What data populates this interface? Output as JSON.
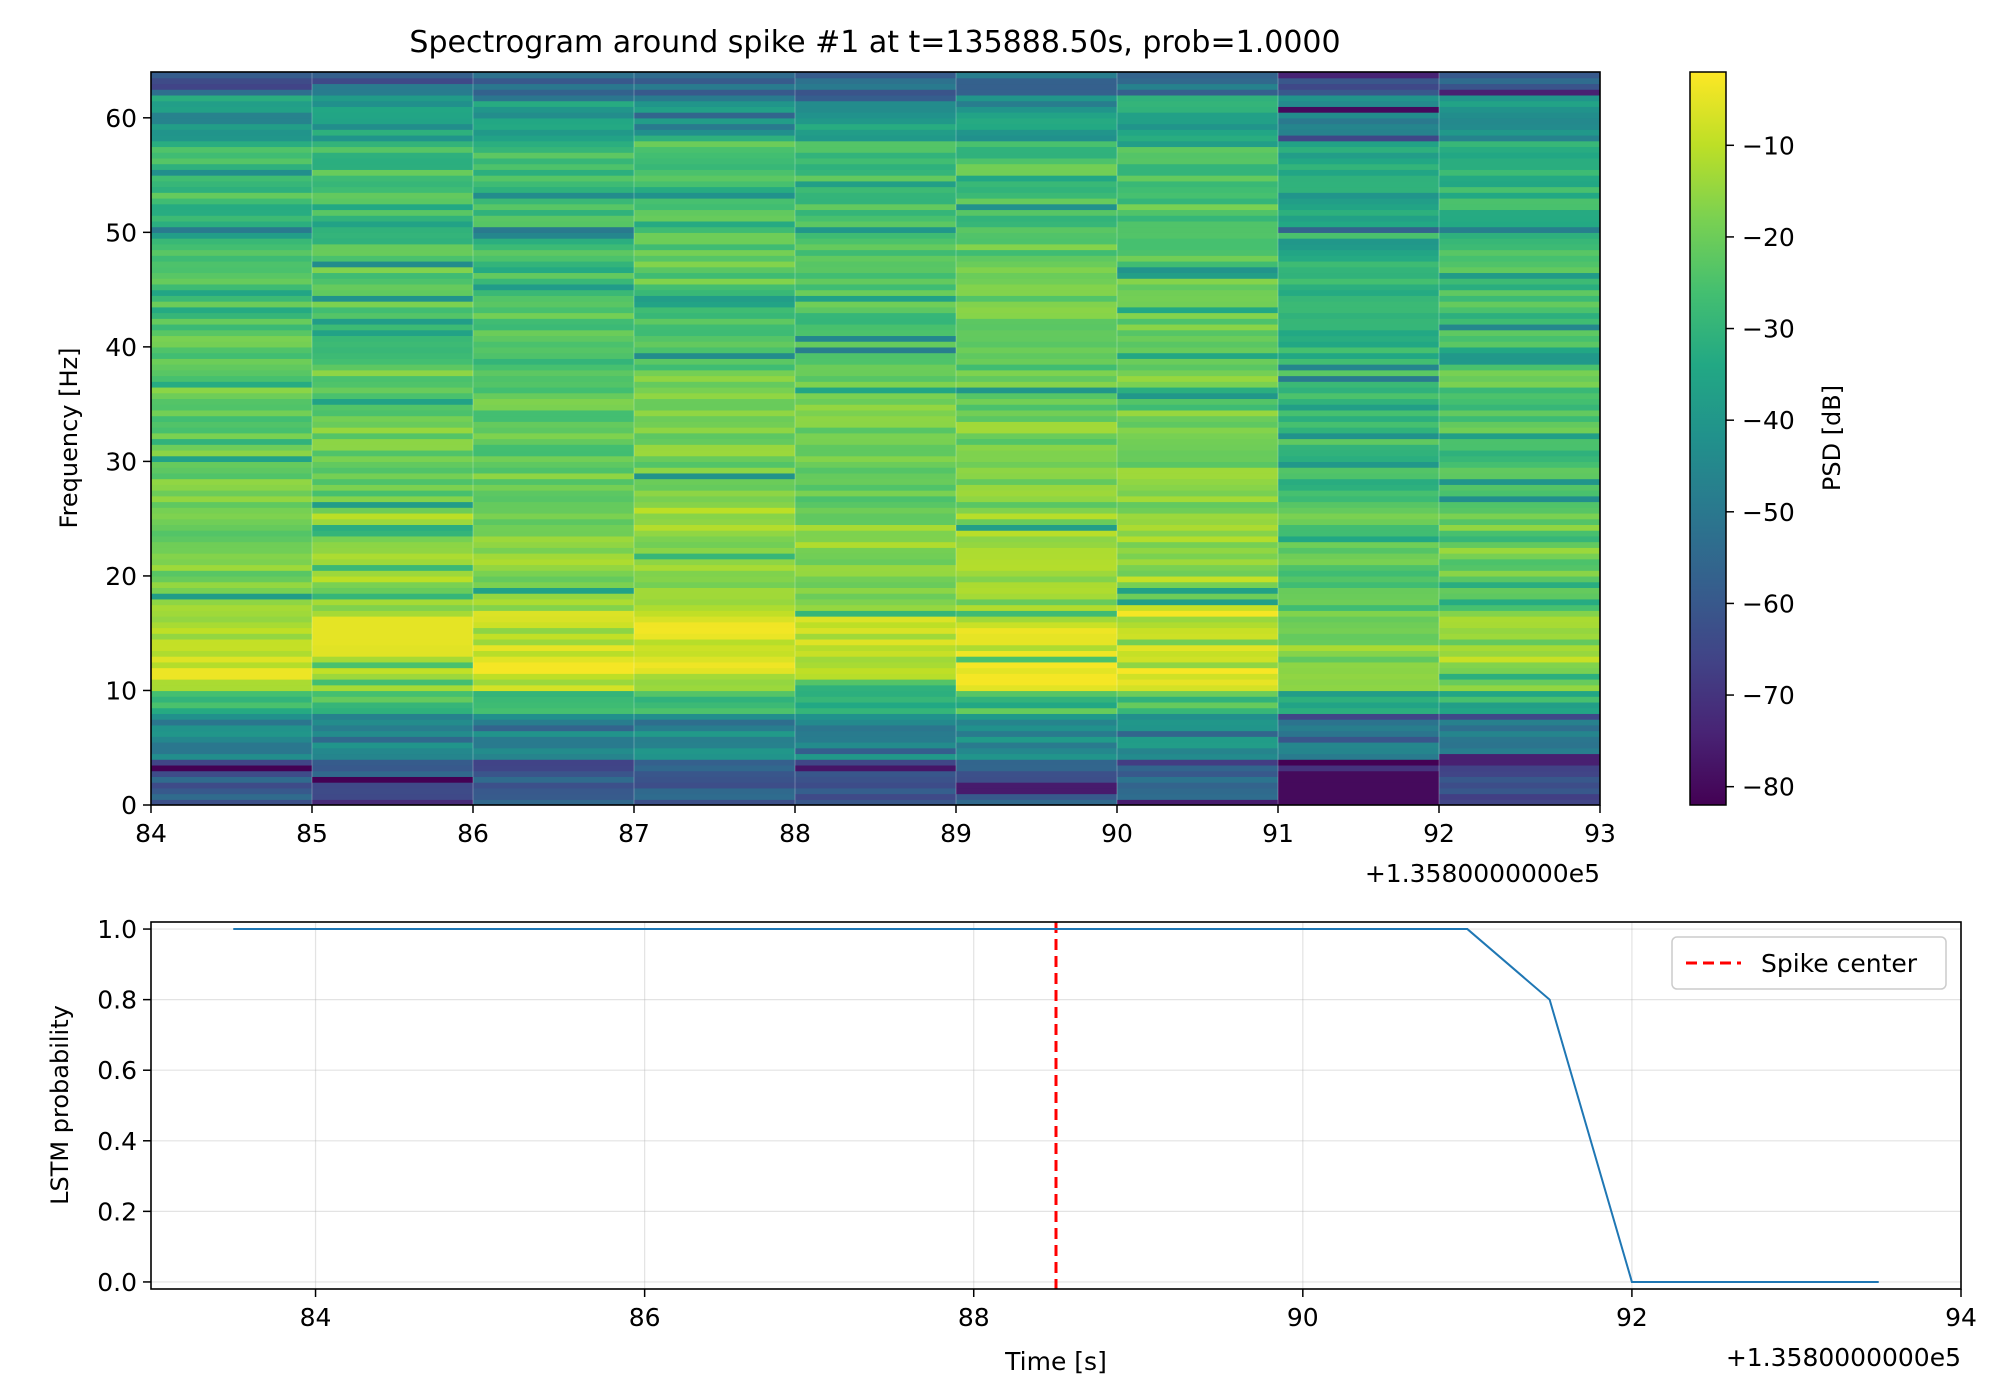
{
  "chart_data": [
    {
      "type": "heatmap",
      "title": "Spectrogram around spike #1 at t=135888.50s, prob=1.0000",
      "xlabel": "",
      "ylabel": "Frequency [Hz]",
      "x_offset_text": "+1.3580000000e5",
      "xlim": [
        84,
        93
      ],
      "ylim": [
        0,
        64
      ],
      "x_ticks": [
        84,
        85,
        86,
        87,
        88,
        89,
        90,
        91,
        92,
        93
      ],
      "y_ticks": [
        0,
        10,
        20,
        30,
        40,
        50,
        60
      ],
      "time_bin_edges": [
        84,
        85,
        86,
        87,
        88,
        89,
        90,
        91,
        92,
        93
      ],
      "freq_bin_width_hz": 0.5,
      "colormap": "viridis",
      "colorbar": {
        "label": "PSD [dB]",
        "range": [
          -82,
          -2
        ],
        "ticks": [
          -10,
          -20,
          -30,
          -40,
          -50,
          -60,
          -70,
          -80
        ],
        "tick_labels": [
          "−10",
          "−20",
          "−30",
          "−40",
          "−50",
          "−60",
          "−70",
          "−80"
        ]
      },
      "band_profile_db": [
        {
          "from_hz": 0,
          "to_hz": 4,
          "db": -60
        },
        {
          "from_hz": 4,
          "to_hz": 8,
          "db": -45
        },
        {
          "from_hz": 8,
          "to_hz": 10,
          "db": -28
        },
        {
          "from_hz": 10,
          "to_hz": 17,
          "db": -10
        },
        {
          "from_hz": 17,
          "to_hz": 26,
          "db": -17
        },
        {
          "from_hz": 26,
          "to_hz": 38,
          "db": -21
        },
        {
          "from_hz": 38,
          "to_hz": 50,
          "db": -24
        },
        {
          "from_hz": 50,
          "to_hz": 58,
          "db": -27
        },
        {
          "from_hz": 58,
          "to_hz": 62,
          "db": -38
        },
        {
          "from_hz": 62,
          "to_hz": 64,
          "db": -55
        }
      ],
      "column_offsets_db": [
        0,
        1,
        0,
        1,
        0,
        2,
        3,
        -6,
        -3
      ],
      "notable_bins": [
        {
          "t_from": 86,
          "t_to": 87,
          "f_from": 11.5,
          "f_to": 12.5,
          "db": -3
        },
        {
          "t_from": 89,
          "t_to": 90,
          "f_from": 10.5,
          "f_to": 11.5,
          "db": -3
        },
        {
          "t_from": 84,
          "t_to": 85,
          "f_from": 11,
          "f_to": 12,
          "db": -4
        },
        {
          "t_from": 85,
          "t_to": 86,
          "f_from": 14,
          "f_to": 16.5,
          "db": -5
        },
        {
          "t_from": 91,
          "t_to": 92,
          "f_from": 0,
          "f_to": 3,
          "db": -80
        },
        {
          "t_from": 91,
          "t_to": 92,
          "f_from": 60.5,
          "f_to": 61,
          "db": -80
        },
        {
          "t_from": 92,
          "t_to": 93,
          "f_from": 3.5,
          "f_to": 4.5,
          "db": -75
        },
        {
          "t_from": 89,
          "t_to": 90,
          "f_from": 1,
          "f_to": 2,
          "db": -76
        }
      ]
    },
    {
      "type": "line",
      "title": "",
      "xlabel": "Time [s]",
      "ylabel": "LSTM probability",
      "x_offset_text": "+1.3580000000e5",
      "xlim": [
        83,
        94
      ],
      "ylim": [
        -0.02,
        1.02
      ],
      "x_ticks": [
        84,
        86,
        88,
        90,
        92,
        94
      ],
      "y_ticks": [
        0.0,
        0.2,
        0.4,
        0.6,
        0.8,
        1.0
      ],
      "y_tick_labels": [
        "0.0",
        "0.2",
        "0.4",
        "0.6",
        "0.8",
        "1.0"
      ],
      "grid": true,
      "series": [
        {
          "name": "LSTM probability",
          "color": "#1f77b4",
          "x": [
            83.5,
            84.0,
            84.5,
            85.0,
            85.5,
            86.0,
            86.5,
            87.0,
            87.5,
            88.0,
            88.5,
            89.0,
            89.5,
            90.0,
            90.5,
            91.0,
            91.5,
            92.0,
            92.5,
            93.0,
            93.5
          ],
          "y": [
            1,
            1,
            1,
            1,
            1,
            1,
            1,
            1,
            1,
            1,
            1,
            1,
            1,
            1,
            1,
            1,
            0.8,
            0,
            0,
            0,
            0
          ]
        }
      ],
      "spike_center": {
        "x": 88.5,
        "label": "Spike center",
        "color": "#ff0000"
      },
      "legend": {
        "location": "top-right",
        "entries": [
          "Spike center"
        ]
      }
    }
  ]
}
